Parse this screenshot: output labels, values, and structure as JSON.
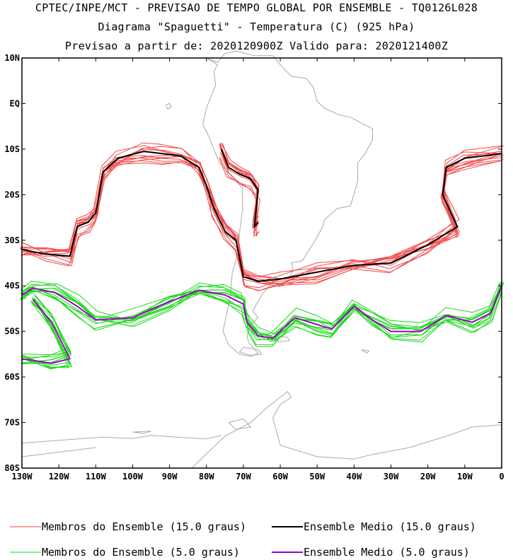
{
  "header": {
    "line1": "CPTEC/INPE/MCT - PREVISAO DE TEMPO GLOBAL POR ENSEMBLE - TQ0126L028",
    "line2": "Diagrama \"Spaguetti\" - Temperatura (C) (925 hPa)",
    "line3": "Previsao a partir de: 2020120900Z  Valido para: 2020121400Z"
  },
  "chart_data": {
    "type": "line",
    "map_projection": "lat-lon",
    "xlim": [
      -130,
      0
    ],
    "ylim": [
      -80,
      10
    ],
    "x_ticks": [
      -130,
      -120,
      -110,
      -100,
      -90,
      -80,
      -70,
      -60,
      -50,
      -40,
      -30,
      -20,
      -10,
      0
    ],
    "x_tick_labels": [
      "130W",
      "120W",
      "110W",
      "100W",
      "90W",
      "80W",
      "70W",
      "60W",
      "50W",
      "40W",
      "30W",
      "20W",
      "10W",
      "0"
    ],
    "y_ticks": [
      10,
      0,
      -10,
      -20,
      -30,
      -40,
      -50,
      -60,
      -70,
      -80
    ],
    "y_tick_labels": [
      "10N",
      "EQ",
      "10S",
      "20S",
      "30S",
      "40S",
      "50S",
      "60S",
      "70S",
      "80S"
    ],
    "grid": false,
    "coastline_color": "#a9a9a9",
    "series": [
      {
        "name": "Ensemble Medio (15.0 graus)",
        "color": "#000000",
        "points": [
          [
            -130,
            -32
          ],
          [
            -124,
            -33
          ],
          [
            -117,
            -33.5
          ],
          [
            -115,
            -27
          ],
          [
            -112,
            -26
          ],
          [
            -110,
            -24
          ],
          [
            -108,
            -15
          ],
          [
            -104,
            -12
          ],
          [
            -97,
            -10.5
          ],
          [
            -92,
            -11
          ],
          [
            -87,
            -11.5
          ],
          [
            -82,
            -14
          ],
          [
            -80,
            -18
          ],
          [
            -78,
            -23
          ],
          [
            -75,
            -28
          ],
          [
            -72,
            -30
          ],
          [
            -70,
            -38
          ],
          [
            -66,
            -39
          ],
          [
            -60,
            -38.5
          ],
          [
            -50,
            -37
          ],
          [
            -40,
            -35.5
          ],
          [
            -30,
            -35
          ],
          [
            -20,
            -31
          ],
          [
            -12,
            -27
          ],
          [
            -16,
            -20
          ],
          [
            -15,
            -14
          ],
          [
            -10,
            -12
          ],
          [
            0,
            -11
          ]
        ],
        "points_branch": [
          [
            -76,
            -10
          ],
          [
            -74,
            -14
          ],
          [
            -71,
            -15.5
          ],
          [
            -68,
            -16.5
          ],
          [
            -66,
            -19
          ],
          [
            -67,
            -27
          ],
          [
            -66,
            -26
          ]
        ]
      },
      {
        "name": "Ensemble Medio (5.0 graus)",
        "color": "#a000c8",
        "points": [
          [
            -130,
            -42
          ],
          [
            -127,
            -40.5
          ],
          [
            -121,
            -41.5
          ],
          [
            -115,
            -44.5
          ],
          [
            -110,
            -47.5
          ],
          [
            -100,
            -47
          ],
          [
            -90,
            -43.5
          ],
          [
            -82,
            -41
          ],
          [
            -75,
            -42
          ],
          [
            -70,
            -44
          ],
          [
            -69,
            -48
          ],
          [
            -66,
            -51
          ],
          [
            -62,
            -51.5
          ],
          [
            -56,
            -47
          ],
          [
            -50,
            -48.5
          ],
          [
            -46,
            -49.5
          ],
          [
            -40,
            -44.5
          ],
          [
            -35,
            -47.5
          ],
          [
            -30,
            -50
          ],
          [
            -22,
            -50
          ],
          [
            -15,
            -46.5
          ],
          [
            -8,
            -48
          ],
          [
            -3,
            -46
          ],
          [
            0,
            -40
          ]
        ],
        "points_branch": [
          [
            -127,
            -43
          ],
          [
            -122,
            -48
          ],
          [
            -117,
            -56
          ],
          [
            -122,
            -57
          ],
          [
            -130,
            -56
          ]
        ]
      }
    ],
    "ensemble_members": [
      {
        "group": "Membros do Ensemble (15.0 graus)",
        "color": "#f04848",
        "count": 12
      },
      {
        "group": "Membros do Ensemble (5.0 graus)",
        "color": "#18d818",
        "count": 12
      }
    ]
  },
  "legend": [
    {
      "label": "Membros do Ensemble (15.0 graus)",
      "color": "#f04848",
      "style": "thin"
    },
    {
      "label": "Ensemble Medio (15.0 graus)",
      "color": "#000000",
      "style": "thick"
    },
    {
      "label": "Membros do Ensemble (5.0 graus)",
      "color": "#18d818",
      "style": "thin"
    },
    {
      "label": "Ensemble Medio (5.0 graus)",
      "color": "#a000c8",
      "style": "thick"
    }
  ]
}
